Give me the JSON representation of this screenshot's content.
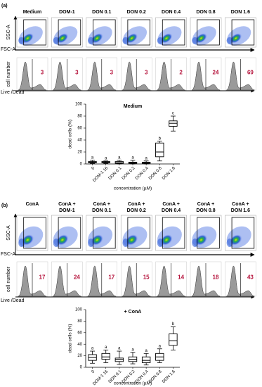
{
  "panels": [
    {
      "label": "(a)",
      "y_axis_label": "SSC-A",
      "x_axis_label": "FSC-A",
      "hist_y_label": "cell number",
      "hist_x_label": "Live /Dead",
      "conditions": [
        {
          "title_lines": [
            "Medium"
          ],
          "dead_label": "3"
        },
        {
          "title_lines": [
            "DOM-1"
          ],
          "dead_label": "3"
        },
        {
          "title_lines": [
            "DON 0.1"
          ],
          "dead_label": "3"
        },
        {
          "title_lines": [
            "DON 0.2"
          ],
          "dead_label": "3"
        },
        {
          "title_lines": [
            "DON 0.4"
          ],
          "dead_label": "2"
        },
        {
          "title_lines": [
            "DON 0.8"
          ],
          "dead_label": "24"
        },
        {
          "title_lines": [
            "DON 1.6"
          ],
          "dead_label": "69"
        }
      ],
      "boxplot": {
        "type": "box",
        "title": "Medium",
        "y_label": "dead cells (%)",
        "x_label": "concentration (µM)",
        "categories": [
          "0",
          "DOM-1 16",
          "DON 0.1",
          "DON 0.2",
          "DON 0.4",
          "DON 0.8",
          "DON 1.6"
        ],
        "boxes": [
          {
            "min": 1,
            "q1": 2,
            "median": 3,
            "q3": 4,
            "max": 6
          },
          {
            "min": 1,
            "q1": 2,
            "median": 3,
            "q3": 4,
            "max": 5
          },
          {
            "min": 0,
            "q1": 1,
            "median": 2,
            "q3": 4,
            "max": 6
          },
          {
            "min": 0,
            "q1": 1,
            "median": 2,
            "q3": 3,
            "max": 6
          },
          {
            "min": 0,
            "q1": 1,
            "median": 2,
            "q3": 3,
            "max": 5
          },
          {
            "min": 5,
            "q1": 12,
            "median": 20,
            "q3": 35,
            "max": 38
          },
          {
            "min": 55,
            "q1": 63,
            "median": 68,
            "q3": 72,
            "max": 80
          }
        ],
        "letters": [
          "a",
          "a",
          "a",
          "a",
          "a",
          "b",
          "c"
        ],
        "ylim": [
          0,
          100
        ],
        "yticks": [
          0,
          20,
          40,
          60,
          80,
          100
        ]
      }
    },
    {
      "label": "(b)",
      "y_axis_label": "SSC-A",
      "x_axis_label": "FSC-A",
      "hist_y_label": "cell number",
      "hist_x_label": "Live /Dead",
      "conditions": [
        {
          "title_lines": [
            "ConA"
          ],
          "dead_label": "17"
        },
        {
          "title_lines": [
            "ConA +",
            "DOM-1"
          ],
          "dead_label": "24"
        },
        {
          "title_lines": [
            "ConA +",
            "DON 0.1"
          ],
          "dead_label": "17"
        },
        {
          "title_lines": [
            "ConA +",
            "DON 0.2"
          ],
          "dead_label": "15"
        },
        {
          "title_lines": [
            "ConA +",
            "DON 0.4"
          ],
          "dead_label": "14"
        },
        {
          "title_lines": [
            "ConA +",
            "DON 0.8"
          ],
          "dead_label": "18"
        },
        {
          "title_lines": [
            "ConA +",
            "DON 1.6"
          ],
          "dead_label": "43"
        }
      ],
      "boxplot": {
        "type": "box",
        "title": "+ ConA",
        "y_label": "dead cells (%)",
        "x_label": "concentration (µM)",
        "categories": [
          "0",
          "DOM-1 16",
          "DON 0.1",
          "DON 0.2",
          "DON 0.4",
          "DON 0.8",
          "DON 1.6"
        ],
        "boxes": [
          {
            "min": 7,
            "q1": 12,
            "median": 17,
            "q3": 22,
            "max": 28
          },
          {
            "min": 8,
            "q1": 14,
            "median": 18,
            "q3": 24,
            "max": 30
          },
          {
            "min": 5,
            "q1": 10,
            "median": 14,
            "q3": 16,
            "max": 28
          },
          {
            "min": 6,
            "q1": 10,
            "median": 14,
            "q3": 18,
            "max": 26
          },
          {
            "min": 4,
            "q1": 8,
            "median": 12,
            "q3": 18,
            "max": 24
          },
          {
            "min": 8,
            "q1": 12,
            "median": 18,
            "q3": 24,
            "max": 32
          },
          {
            "min": 30,
            "q1": 38,
            "median": 46,
            "q3": 58,
            "max": 70
          }
        ],
        "letters": [
          "a",
          "a",
          "a",
          "a",
          "a",
          "a",
          "b"
        ],
        "ylim": [
          0,
          100
        ],
        "yticks": [
          0,
          20,
          40,
          60,
          80,
          100
        ]
      }
    }
  ]
}
